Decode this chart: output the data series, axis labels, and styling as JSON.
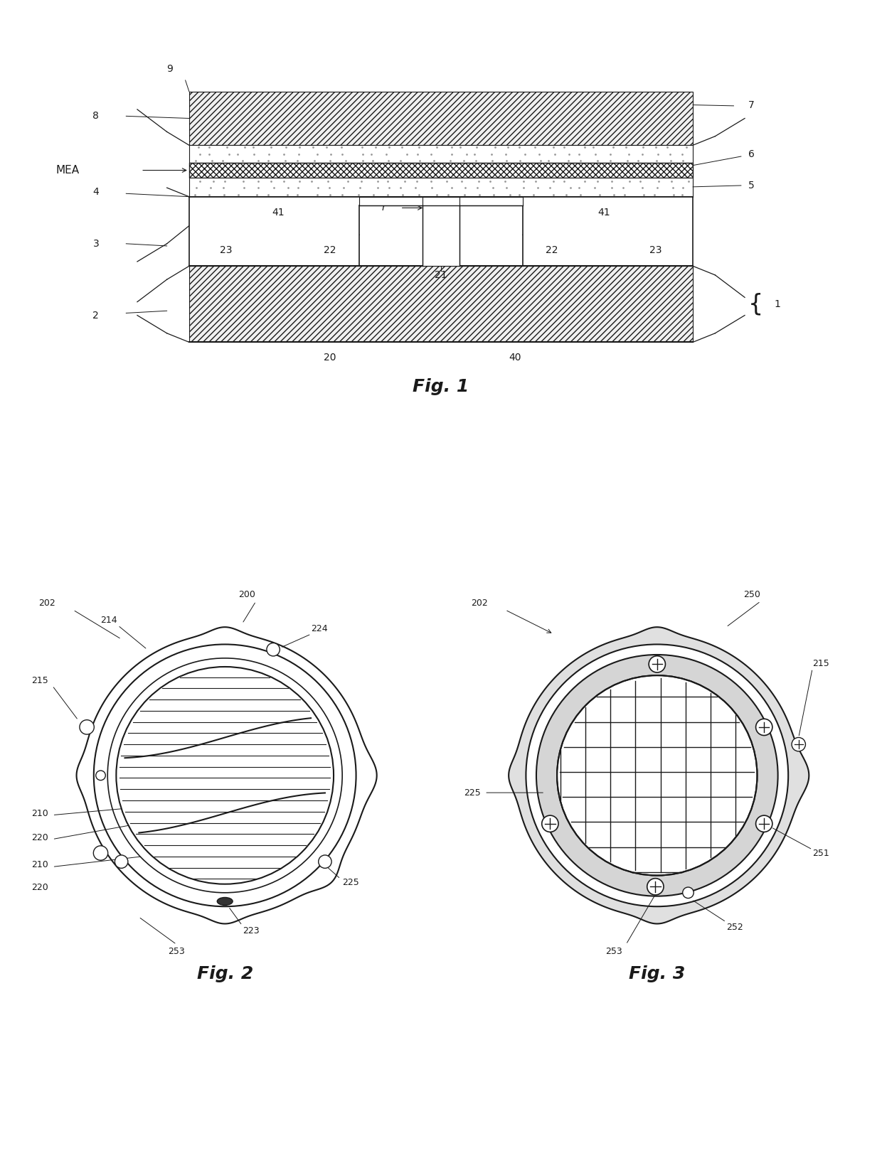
{
  "fig_title1": "Fig. 1",
  "fig_title2": "Fig. 2",
  "fig_title3": "Fig. 3",
  "bg_color": "#ffffff",
  "line_color": "#1a1a1a",
  "font_size_title": 16,
  "font_size_num": 10
}
